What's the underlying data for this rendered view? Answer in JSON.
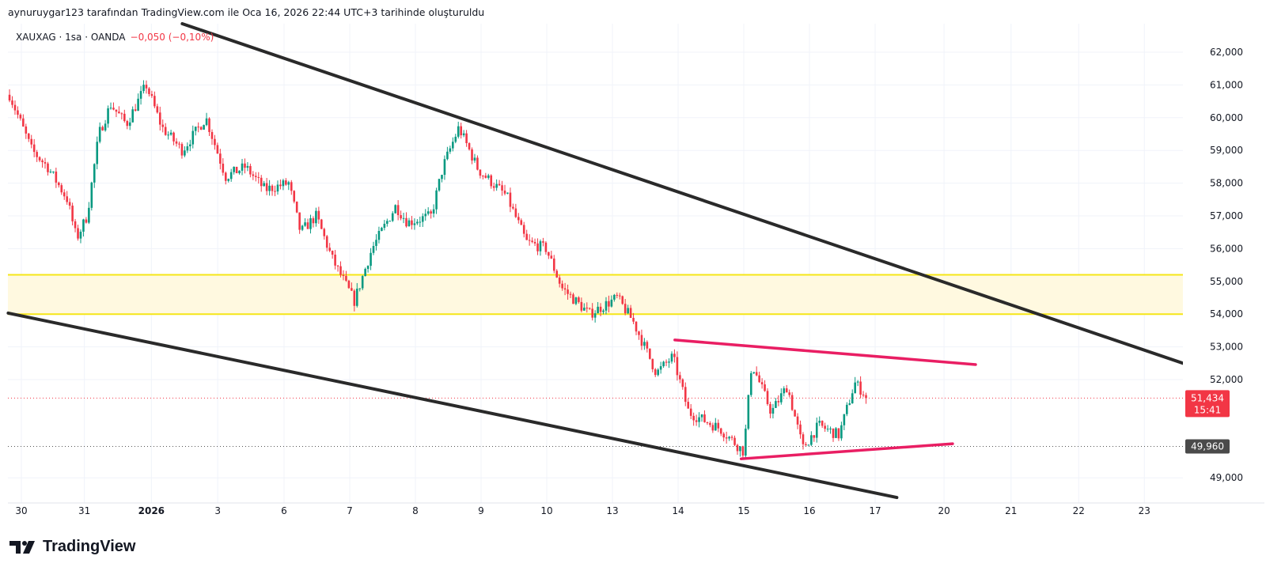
{
  "caption": "aynuruygar123 tarafından TradingView.com ile Oca 16, 2026 22:44 UTC+3 tarihinde oluşturuldu",
  "legend": {
    "symbol": "XAUXAG · 1sa · OANDA",
    "change": "−0,050 (−0,10%)"
  },
  "logo": {
    "text": "TradingView"
  },
  "colors": {
    "up": "#089981",
    "down": "#f23645",
    "trend": "#2a2a2a",
    "pattern": "#e91e63",
    "zone": "#f5e617",
    "zone_fill": "#fff9e0"
  },
  "chart_data": {
    "type": "candlestick",
    "title": "XAUXAG · 1sa · OANDA",
    "ylim": [
      48500,
      62800
    ],
    "xlim": [
      -0.2,
      17.6
    ],
    "y_ticks": [
      {
        "v": 62000,
        "label": "62,000"
      },
      {
        "v": 61000,
        "label": "61,000"
      },
      {
        "v": 60000,
        "label": "60,000"
      },
      {
        "v": 59000,
        "label": "59,000"
      },
      {
        "v": 58000,
        "label": "58,000"
      },
      {
        "v": 57000,
        "label": "57,000"
      },
      {
        "v": 56000,
        "label": "56,000"
      },
      {
        "v": 55000,
        "label": "55,000"
      },
      {
        "v": 54000,
        "label": "54,000"
      },
      {
        "v": 53000,
        "label": "53,000"
      },
      {
        "v": 52000,
        "label": "52,000"
      },
      {
        "v": 49000,
        "label": "49,000"
      }
    ],
    "x_ticks": [
      {
        "v": 0,
        "label": "30"
      },
      {
        "v": 0.96,
        "label": "31"
      },
      {
        "v": 1.98,
        "label": "2026",
        "bold": true
      },
      {
        "v": 2.99,
        "label": "3"
      },
      {
        "v": 4.0,
        "label": "6"
      },
      {
        "v": 5.0,
        "label": "7"
      },
      {
        "v": 6.0,
        "label": "8"
      },
      {
        "v": 7.0,
        "label": "9"
      },
      {
        "v": 8.0,
        "label": "10"
      },
      {
        "v": 9.0,
        "label": "13"
      },
      {
        "v": 10.0,
        "label": "14"
      },
      {
        "v": 11.0,
        "label": "15"
      },
      {
        "v": 12.0,
        "label": "16"
      },
      {
        "v": 13.0,
        "label": "17"
      },
      {
        "v": 14.05,
        "label": "20"
      },
      {
        "v": 15.07,
        "label": "21"
      },
      {
        "v": 16.1,
        "label": "22"
      },
      {
        "v": 17.1,
        "label": "23"
      }
    ],
    "price_path": [
      [
        -0.18,
        60700
      ],
      [
        0.16,
        59000
      ],
      [
        0.4,
        58500
      ],
      [
        0.7,
        57500
      ],
      [
        0.84,
        56300
      ],
      [
        1.0,
        57000
      ],
      [
        1.18,
        59500
      ],
      [
        1.36,
        60400
      ],
      [
        1.6,
        59800
      ],
      [
        1.9,
        61000
      ],
      [
        2.14,
        59700
      ],
      [
        2.45,
        59000
      ],
      [
        2.81,
        60000
      ],
      [
        3.11,
        58200
      ],
      [
        3.41,
        58500
      ],
      [
        3.71,
        57800
      ],
      [
        4.07,
        58000
      ],
      [
        4.25,
        56500
      ],
      [
        4.49,
        57000
      ],
      [
        4.73,
        55700
      ],
      [
        5.07,
        54400
      ],
      [
        5.34,
        56000
      ],
      [
        5.7,
        57300
      ],
      [
        5.88,
        56800
      ],
      [
        6.24,
        57000
      ],
      [
        6.42,
        58500
      ],
      [
        6.66,
        59700
      ],
      [
        6.96,
        58400
      ],
      [
        7.39,
        57600
      ],
      [
        7.69,
        56200
      ],
      [
        7.99,
        56000
      ],
      [
        8.23,
        54800
      ],
      [
        8.65,
        54000
      ],
      [
        9.07,
        54500
      ],
      [
        9.31,
        53800
      ],
      [
        9.67,
        52200
      ],
      [
        9.92,
        52700
      ],
      [
        10.16,
        51000
      ],
      [
        10.64,
        50500
      ],
      [
        11.0,
        49800
      ],
      [
        11.12,
        52500
      ],
      [
        11.42,
        51000
      ],
      [
        11.66,
        51800
      ],
      [
        11.9,
        49900
      ],
      [
        12.14,
        50600
      ],
      [
        12.45,
        50300
      ],
      [
        12.69,
        51900
      ],
      [
        12.9,
        51434
      ]
    ],
    "last_price": {
      "value": 51434,
      "label": "51,434",
      "countdown": "15:41"
    },
    "marker_price": {
      "value": 49960,
      "label": "49,960"
    },
    "zone": {
      "from": 54000,
      "to": 55200
    },
    "trendlines": [
      {
        "name": "upper-channel-line",
        "color": "trend",
        "p1": [
          2.45,
          62870
        ],
        "p2": [
          18.95,
          51640
        ]
      },
      {
        "name": "lower-channel-line",
        "color": "trend",
        "p1": [
          -0.2,
          54030
        ],
        "p2": [
          13.33,
          48400
        ]
      },
      {
        "name": "triangle-upper-line",
        "color": "pattern",
        "p1": [
          9.95,
          53210
        ],
        "p2": [
          14.53,
          52460
        ]
      },
      {
        "name": "triangle-lower-line",
        "color": "pattern",
        "p1": [
          10.96,
          49580
        ],
        "p2": [
          14.18,
          50040
        ]
      }
    ]
  }
}
